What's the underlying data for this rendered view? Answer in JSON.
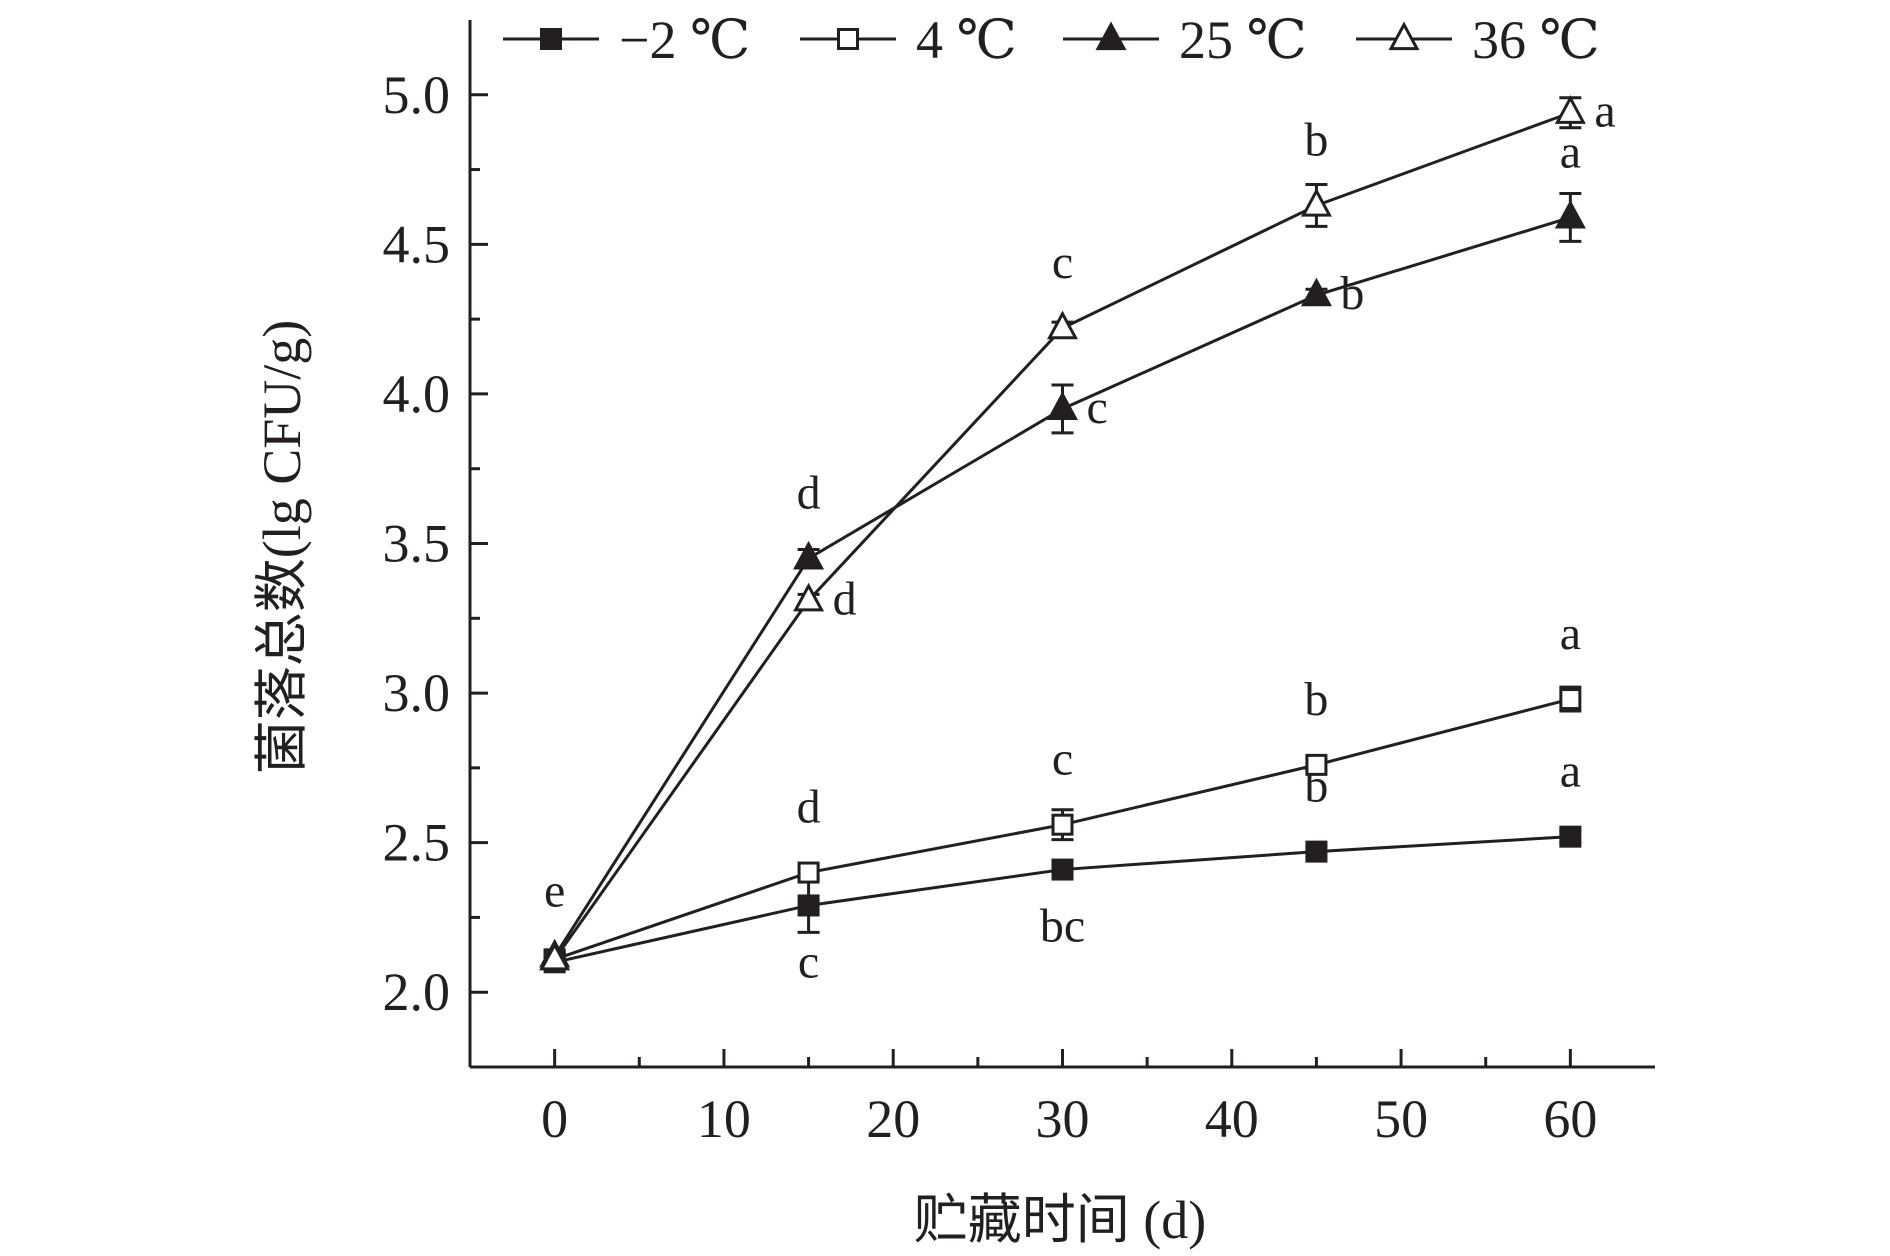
{
  "colors": {
    "ink": "#231f20",
    "background": "#ffffff"
  },
  "chart_data": {
    "type": "line",
    "xlabel": "贮藏时间 (d)",
    "ylabel": "菌落总数(lg CFU/g)",
    "xlim": [
      -5,
      65
    ],
    "ylim": [
      1.75,
      5.25
    ],
    "xticks": [
      0,
      10,
      20,
      30,
      40,
      50,
      60
    ],
    "xtick_labels": [
      "0",
      "10",
      "20",
      "30",
      "40",
      "50",
      "60"
    ],
    "yticks": [
      2.0,
      2.5,
      3.0,
      3.5,
      4.0,
      4.5,
      5.0
    ],
    "ytick_labels": [
      "2.0",
      "2.5",
      "3.0",
      "3.5",
      "4.0",
      "4.5",
      "5.0"
    ],
    "grid": false,
    "legend_position": "top",
    "x": [
      0,
      15,
      30,
      45,
      60
    ],
    "series": [
      {
        "name": "−2 ℃",
        "marker": "square-filled",
        "values": [
          2.1,
          2.29,
          2.41,
          2.47,
          2.52
        ],
        "errors": [
          0.02,
          0.09,
          0.03,
          0.02,
          0.02
        ],
        "significance": [
          "",
          "c",
          "bc",
          "b",
          "a"
        ],
        "sig_position": [
          "",
          "below",
          "below",
          "above",
          "above"
        ]
      },
      {
        "name": "4 ℃",
        "marker": "square-open",
        "values": [
          2.11,
          2.4,
          2.56,
          2.76,
          2.98
        ],
        "errors": [
          0.02,
          0.02,
          0.05,
          0.02,
          0.04
        ],
        "significance": [
          "",
          "d",
          "c",
          "b",
          "a"
        ],
        "sig_position": [
          "",
          "above",
          "above",
          "above",
          "above"
        ]
      },
      {
        "name": "25 ℃",
        "marker": "triangle-filled",
        "values": [
          2.12,
          3.45,
          3.95,
          4.33,
          4.59
        ],
        "errors": [
          0.02,
          0.03,
          0.08,
          0.02,
          0.08
        ],
        "significance": [
          "e",
          "d",
          "c",
          "b",
          "a"
        ],
        "sig_position": [
          "above",
          "above",
          "right",
          "right",
          "above"
        ]
      },
      {
        "name": "36 ℃",
        "marker": "triangle-open",
        "values": [
          2.11,
          3.31,
          4.22,
          4.63,
          4.94
        ],
        "errors": [
          0.02,
          0.02,
          0.02,
          0.07,
          0.05
        ],
        "significance": [
          "",
          "d",
          "c",
          "b",
          "a"
        ],
        "sig_position": [
          "",
          "right",
          "above",
          "above",
          "right"
        ]
      }
    ]
  }
}
